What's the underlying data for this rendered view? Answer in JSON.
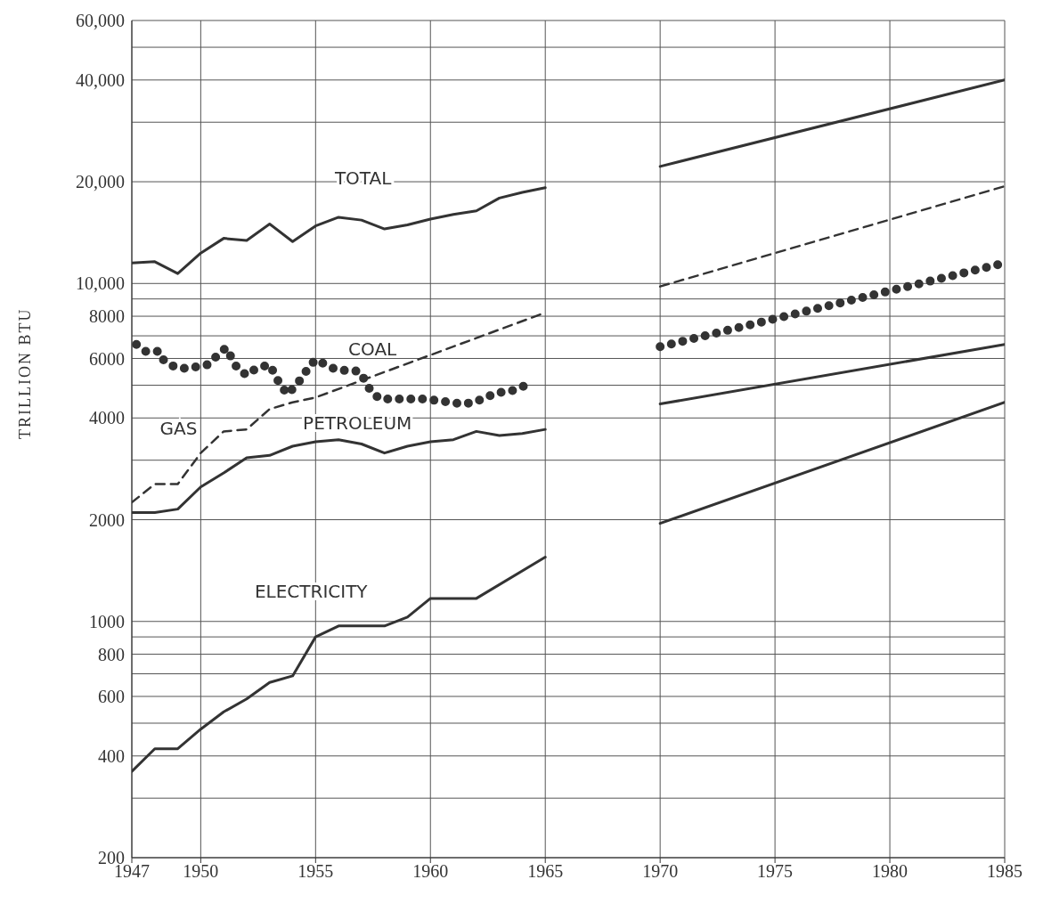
{
  "chart_data": {
    "type": "line",
    "ylabel": "TRILLION BTU",
    "log": "y",
    "grid": true,
    "legend": false,
    "marker": "none",
    "xlim": [
      1947,
      1985
    ],
    "xticks": [
      1947,
      1950,
      1955,
      1960,
      1965,
      1970,
      1975,
      1980,
      1985
    ],
    "ylim": [
      200,
      60000
    ],
    "yticks": [
      200,
      {
        "value": 300,
        "label": null
      },
      400,
      {
        "value": 500,
        "label": null
      },
      600,
      {
        "value": 700,
        "label": null
      },
      800,
      {
        "value": 900,
        "label": null
      },
      1000,
      2000,
      {
        "value": 3000,
        "label": null
      },
      4000,
      {
        "value": 5000,
        "label": null
      },
      6000,
      {
        "value": 7000,
        "label": null
      },
      8000,
      {
        "value": 9000,
        "label": null
      },
      {
        "value": 10000,
        "label": "10,000"
      },
      {
        "value": 20000,
        "label": "20,000"
      },
      {
        "value": 30000,
        "label": null
      },
      {
        "value": 40000,
        "label": "40,000"
      },
      {
        "value": 50000,
        "label": null
      },
      {
        "value": 60000,
        "label": "60,000"
      }
    ],
    "series": [
      {
        "name": "TOTAL",
        "color": "#333333",
        "line_style": "solid",
        "x": [
          1947,
          1948,
          1949,
          1950,
          1951,
          1952,
          1953,
          1954,
          1955,
          1956,
          1957,
          1958,
          1959,
          1960,
          1961,
          1962,
          1963,
          1964,
          1965,
          1967,
          1970,
          1985
        ],
        "values": [
          11500,
          11600,
          10700,
          12300,
          13600,
          13400,
          15000,
          13300,
          14800,
          15700,
          15400,
          14500,
          14900,
          15500,
          16000,
          16400,
          17900,
          18600,
          19200,
          null,
          22200,
          40000
        ]
      },
      {
        "name": "COAL",
        "color": "#333333",
        "line_style": "dotted",
        "x": [
          1947.2,
          1947.6,
          1948.2,
          1948.4,
          1948.9,
          1949.4,
          1950.3,
          1950.7,
          1951.1,
          1951.6,
          1952,
          1952.4,
          1953,
          1953.5,
          1953.8,
          1954.4,
          1954.7,
          1955,
          1955.9,
          1956.9,
          1957.2,
          1957.4,
          1957.8,
          1958.8,
          1959.8,
          1960.3,
          1960.9,
          1961.4,
          1961.9,
          1962.4,
          1962.9,
          1963.5,
          1964,
          1964.5,
          1967,
          1970,
          1985
        ],
        "values": [
          6600,
          6300,
          6300,
          5900,
          5650,
          5600,
          5750,
          6100,
          6450,
          5600,
          5350,
          5600,
          5750,
          4950,
          4700,
          5250,
          5650,
          5950,
          5550,
          5500,
          5100,
          4800,
          4550,
          4550,
          4550,
          4500,
          4450,
          4400,
          4450,
          4600,
          4750,
          4800,
          4950,
          5100,
          null,
          6500,
          11500
        ]
      },
      {
        "name": "GAS",
        "color": "#333333",
        "line_style": "dashed",
        "x": [
          1947,
          1948,
          1949,
          1950,
          1951,
          1952,
          1953,
          1954,
          1955,
          1965,
          1967,
          1970,
          1985
        ],
        "values": [
          2250,
          2550,
          2550,
          3150,
          3650,
          3700,
          4250,
          4450,
          4600,
          8200,
          null,
          9800,
          19400
        ]
      },
      {
        "name": "PETROLEUM",
        "color": "#333333",
        "line_style": "solid",
        "x": [
          1947,
          1948,
          1949,
          1950,
          1951,
          1952,
          1953,
          1954,
          1955,
          1956,
          1957,
          1958,
          1959,
          1960,
          1961,
          1962,
          1963,
          1964,
          1965,
          1967,
          1970,
          1985
        ],
        "values": [
          2100,
          2100,
          2150,
          2500,
          2750,
          3050,
          3100,
          3300,
          3400,
          3450,
          3350,
          3150,
          3300,
          3400,
          3450,
          3650,
          3550,
          3600,
          3700,
          null,
          4400,
          6600
        ]
      },
      {
        "name": "ELECTRICITY",
        "color": "#333333",
        "line_style": "solid",
        "x": [
          1947,
          1948,
          1949,
          1950,
          1951,
          1952,
          1953,
          1954,
          1955,
          1956,
          1957,
          1958,
          1959,
          1960,
          1961,
          1962,
          1965,
          1967,
          1970,
          1985
        ],
        "values": [
          360,
          420,
          420,
          480,
          540,
          590,
          660,
          690,
          900,
          970,
          970,
          970,
          1030,
          1170,
          1170,
          1170,
          1550,
          null,
          1950,
          4450
        ]
      }
    ]
  }
}
